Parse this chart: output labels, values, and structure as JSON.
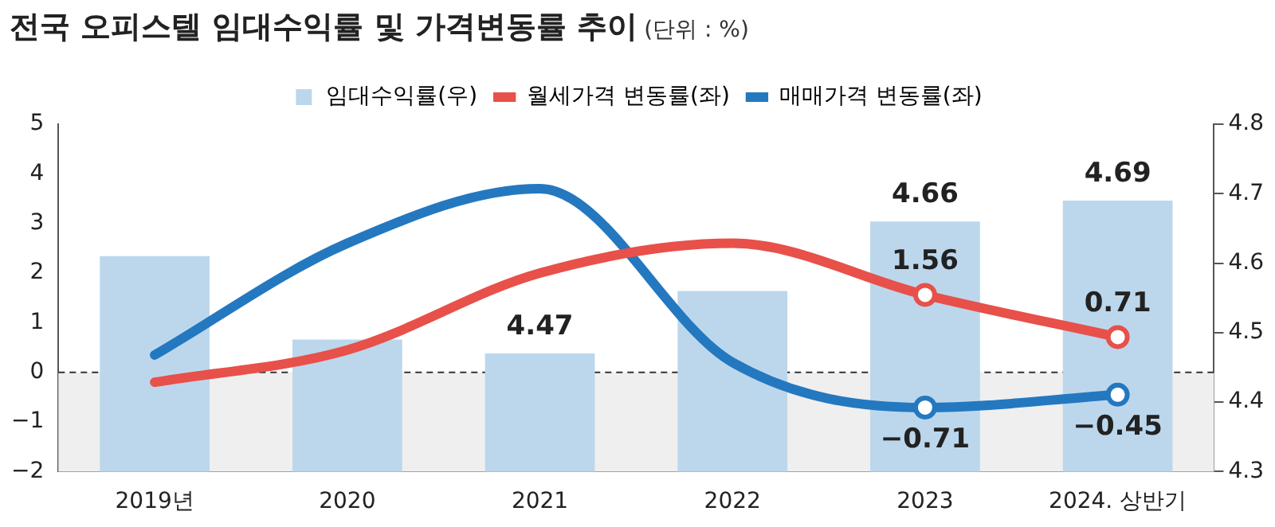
{
  "chart_data": {
    "type": "bar",
    "title": "전국 오피스텔 임대수익률 및 가격변동률 추이",
    "subtitle": "(단위 : %)",
    "categories": [
      "2019년",
      "2020",
      "2021",
      "2022",
      "2023",
      "2024. 상반기"
    ],
    "series": [
      {
        "name": "임대수익률(우)",
        "axis": "y2",
        "color": "#bcd7ec",
        "values": [
          4.61,
          4.49,
          4.47,
          4.56,
          4.66,
          4.69
        ],
        "value_labels": [
          null,
          null,
          "4.47",
          null,
          "4.66",
          "4.69"
        ]
      },
      {
        "name": "월세가격 변동률(좌)",
        "type": "line",
        "color": "#e8504a",
        "values": [
          -0.2,
          0.45,
          2.0,
          2.6,
          1.56,
          0.71
        ],
        "value_labels": [
          null,
          null,
          null,
          null,
          "1.56",
          "0.71"
        ]
      },
      {
        "name": "매매가격 변동률(좌)",
        "type": "line",
        "color": "#2478bf",
        "values": [
          0.35,
          2.6,
          3.7,
          0.2,
          -0.71,
          -0.45
        ],
        "value_labels": [
          null,
          null,
          null,
          null,
          "−0.71",
          "−0.45"
        ]
      }
    ],
    "ylim": [
      -2,
      5
    ],
    "yticks": [
      -2,
      -1,
      0,
      1,
      2,
      3,
      4,
      5
    ],
    "y2lim": [
      4.3,
      4.8
    ],
    "y2ticks": [
      4.3,
      4.4,
      4.5,
      4.6,
      4.7,
      4.8
    ],
    "ref_lines": [
      {
        "axis": "y",
        "value": 0,
        "color": "#333333",
        "line_style": "dashed"
      }
    ],
    "bands": [
      {
        "axis": "y",
        "from": -2,
        "to": 0,
        "color": "#efefef"
      }
    ],
    "grid": false,
    "legend": "top",
    "line_style": "solid"
  }
}
